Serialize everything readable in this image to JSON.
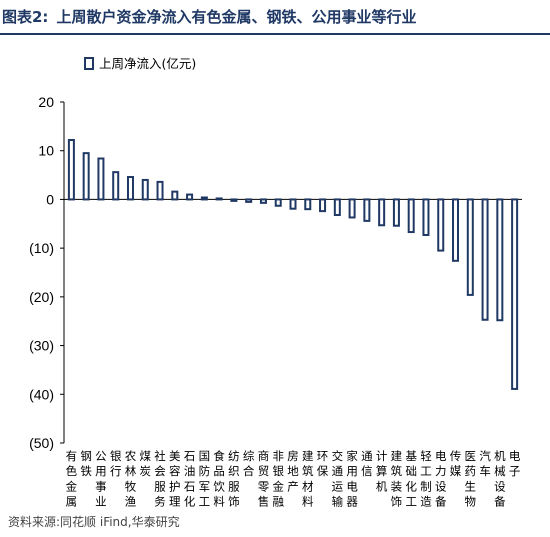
{
  "header": {
    "figure_label": "图表2:",
    "title": "上周散户资金净流入有色金属、钢铁、公用事业等行业"
  },
  "source": "资料来源:同花顺 iFind,华泰研究",
  "colors": {
    "bar_fill": "#ffffff",
    "bar_stroke": "#1f3864",
    "title": "#1f3864"
  },
  "chart_data": {
    "type": "bar",
    "orientation": "vertical",
    "legend": {
      "position": "top-left",
      "entries": [
        "上周净流入(亿元)"
      ]
    },
    "ylim": [
      -50,
      20
    ],
    "yticks": [
      20,
      10,
      0,
      -10,
      -20,
      -30,
      -40,
      -50
    ],
    "ytick_labels": [
      "20",
      "10",
      "0",
      "(10)",
      "(20)",
      "(30)",
      "(40)",
      "(50)"
    ],
    "grid": false,
    "categories": [
      "有色金属",
      "钢铁",
      "公用事业",
      "银行",
      "农林牧渔",
      "煤炭",
      "社会服务",
      "美容护理",
      "石油石化",
      "国防军工",
      "食品饮料",
      "纺织服饰",
      "综合",
      "商贸零售",
      "非银金融",
      "房地产",
      "建筑材料",
      "环保",
      "交通运输",
      "家用电器",
      "通信",
      "计算机",
      "建筑装饰",
      "基础化工",
      "轻工制造",
      "电力设备",
      "传媒",
      "医药生物",
      "汽车",
      "机械设备",
      "电子"
    ],
    "series": [
      {
        "name": "上周净流入(亿元)",
        "values": [
          12.2,
          9.5,
          8.4,
          5.6,
          4.6,
          4.0,
          3.6,
          1.6,
          1.0,
          0.4,
          0.2,
          -0.3,
          -0.5,
          -0.7,
          -1.3,
          -1.9,
          -2.0,
          -2.4,
          -3.2,
          -3.7,
          -4.4,
          -5.3,
          -5.4,
          -6.7,
          -7.3,
          -10.5,
          -12.6,
          -19.6,
          -24.7,
          -24.8,
          -38.9
        ]
      }
    ]
  }
}
